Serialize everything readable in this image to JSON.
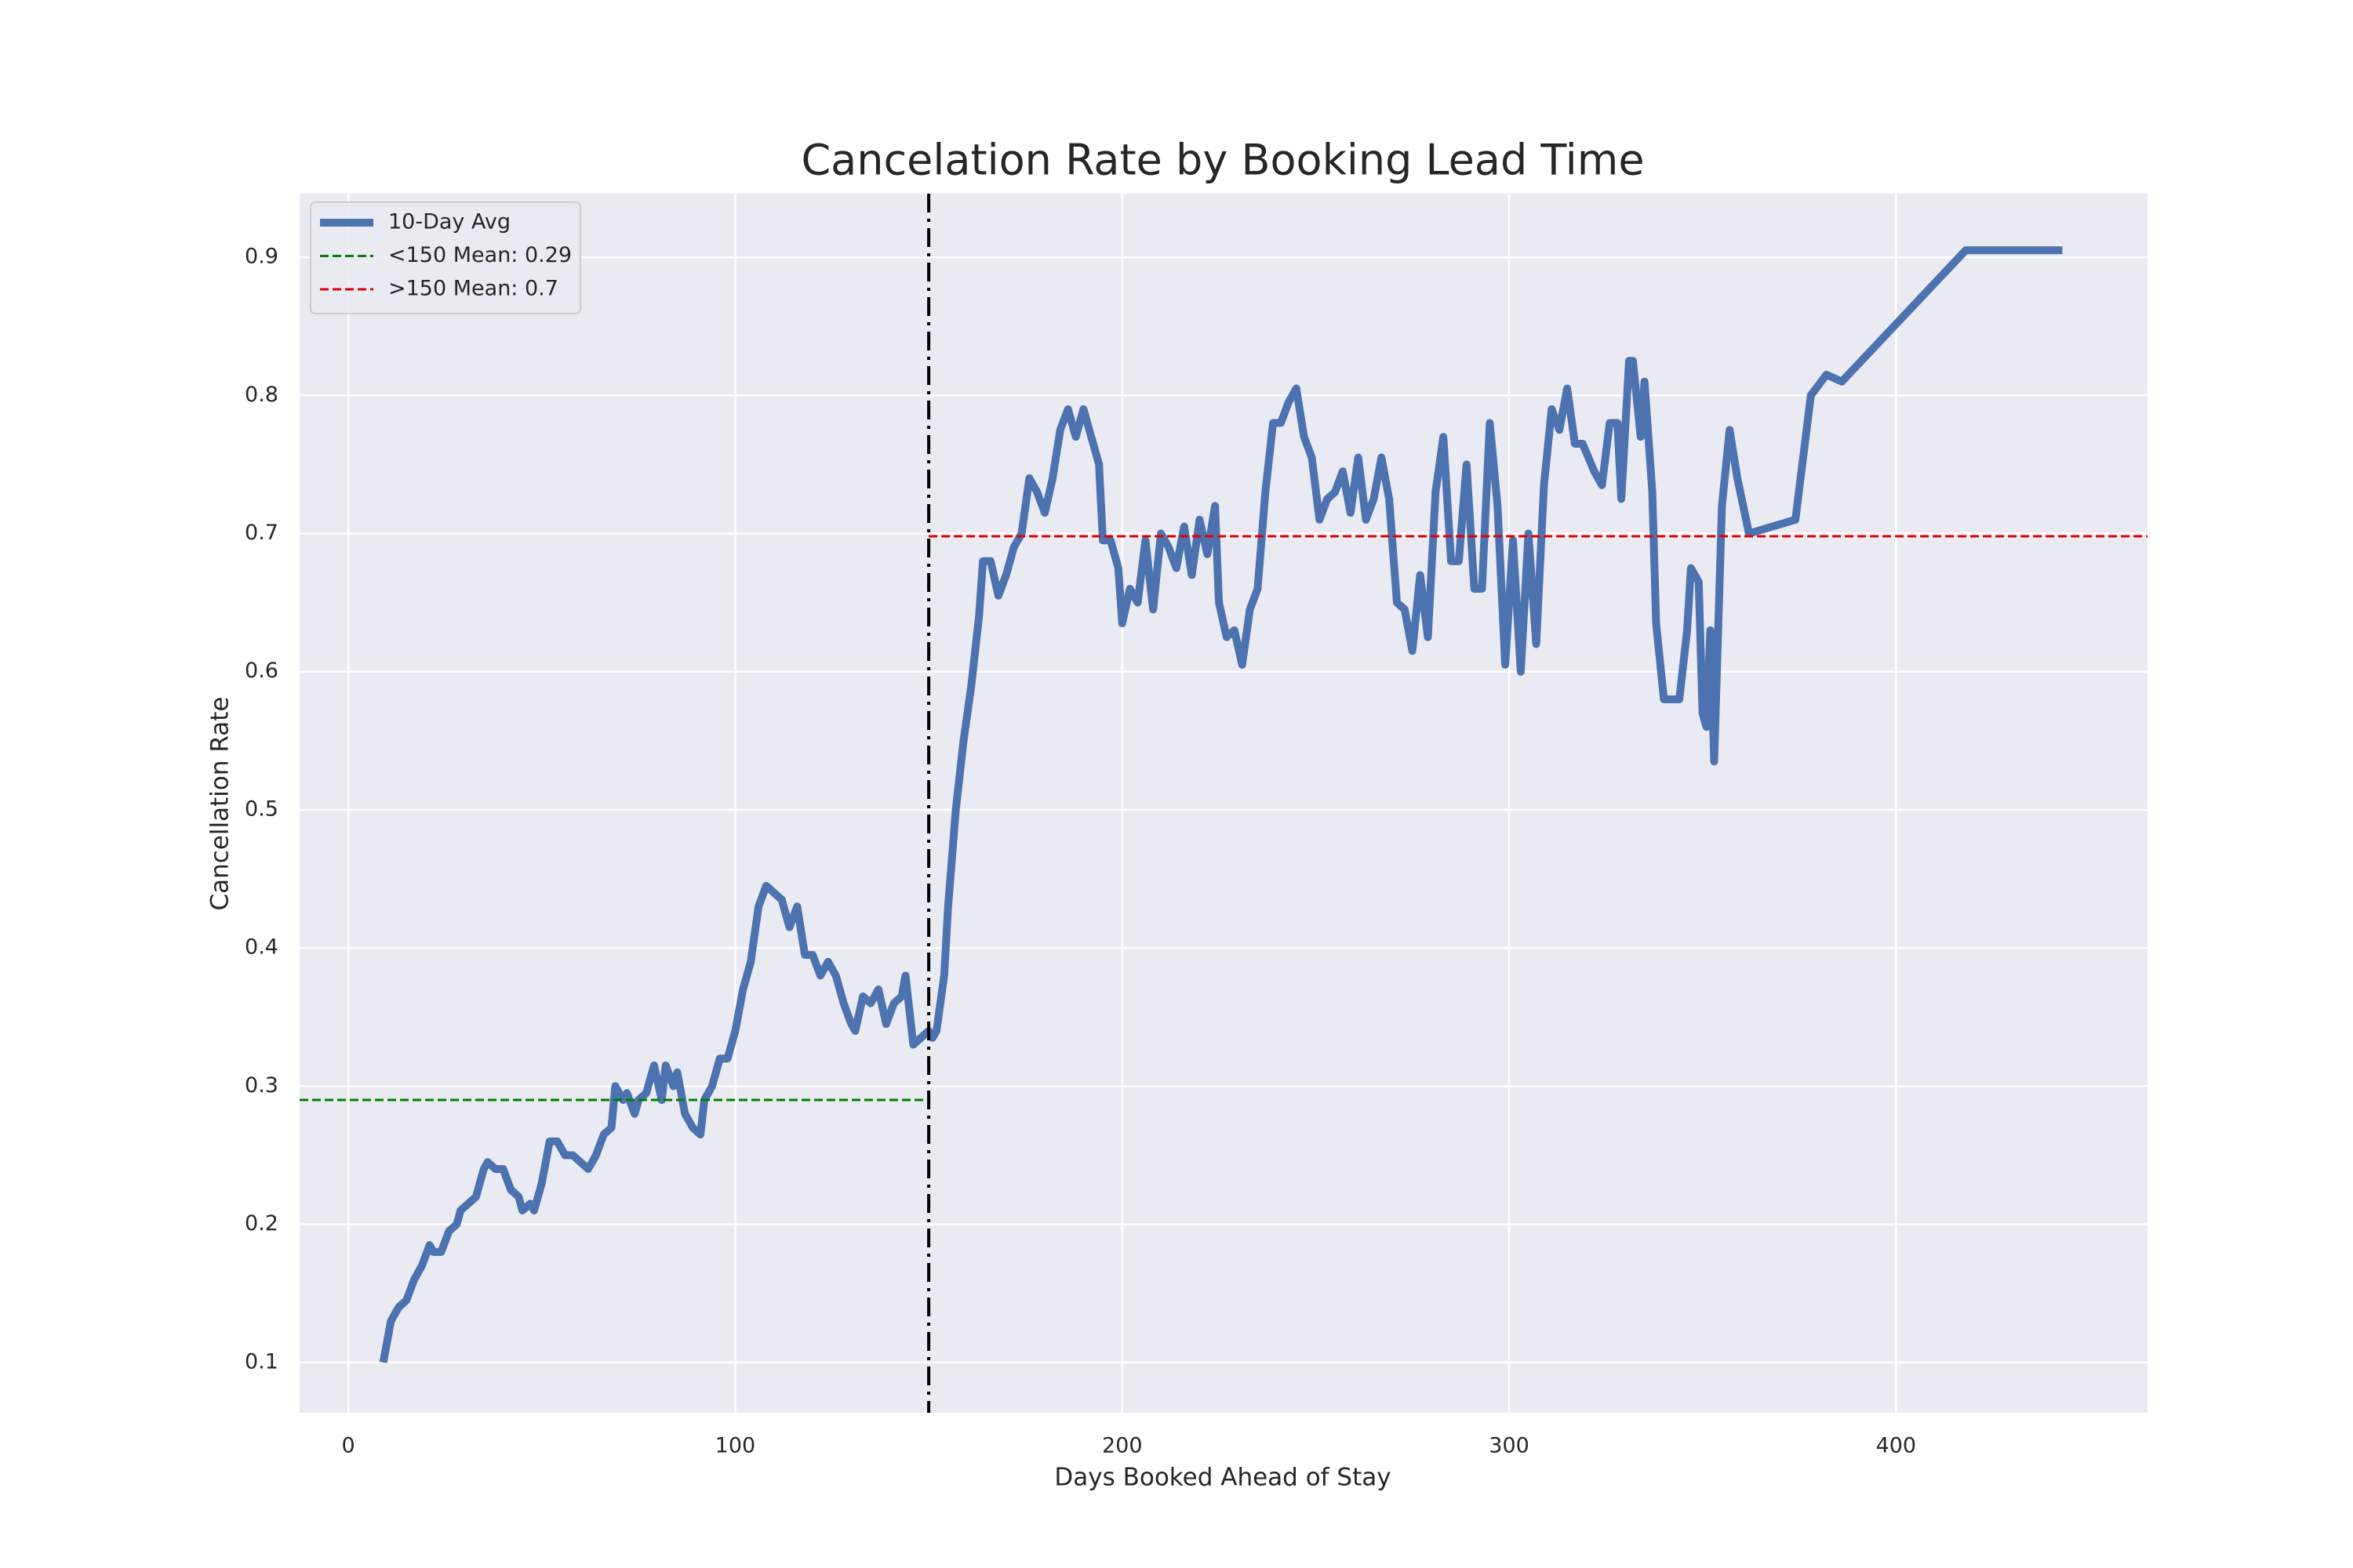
{
  "chart_data": {
    "type": "line",
    "title": "Cancelation Rate by Booking Lead Time",
    "xlabel": "Days Booked Ahead of Stay",
    "ylabel": "Cancellation Rate",
    "x": [
      9,
      11,
      13,
      15,
      17,
      19,
      21,
      22,
      24,
      26,
      28,
      29,
      31,
      33,
      35,
      36,
      38,
      40,
      42,
      44,
      45,
      47,
      48,
      50,
      52,
      54,
      56,
      58,
      60,
      62,
      64,
      66,
      68,
      69,
      71,
      72,
      74,
      75,
      77,
      79,
      81,
      82,
      84,
      85,
      87,
      89,
      91,
      92,
      94,
      96,
      98,
      100,
      102,
      104,
      106,
      108,
      110,
      112,
      114,
      116,
      118,
      120,
      122,
      124,
      126,
      128,
      130,
      131,
      133,
      135,
      137,
      139,
      141,
      143,
      144,
      146,
      148,
      150,
      151,
      152,
      154,
      155,
      157,
      159,
      161,
      163,
      164,
      166,
      168,
      170,
      172,
      174,
      176,
      178,
      180,
      182,
      184,
      186,
      188,
      190,
      192,
      194,
      195,
      197,
      199,
      200,
      202,
      204,
      206,
      208,
      210,
      212,
      214,
      216,
      218,
      220,
      222,
      224,
      225,
      227,
      229,
      231,
      233,
      235,
      237,
      239,
      241,
      243,
      245,
      247,
      249,
      251,
      253,
      255,
      257,
      259,
      261,
      263,
      265,
      267,
      269,
      271,
      273,
      275,
      277,
      279,
      281,
      283,
      285,
      287,
      289,
      291,
      293,
      295,
      297,
      299,
      301,
      303,
      305,
      307,
      309,
      311,
      313,
      315,
      317,
      319,
      322,
      324,
      326,
      328,
      329,
      331,
      332,
      334,
      335,
      337,
      338,
      340,
      342,
      344,
      346,
      347,
      349,
      350,
      351,
      352,
      353,
      355,
      357,
      359,
      362,
      374,
      378,
      382,
      386,
      418,
      443
    ],
    "series": [
      {
        "name": "10-Day Avg",
        "color": "#4c72b0",
        "values": [
          0.1,
          0.13,
          0.14,
          0.145,
          0.16,
          0.17,
          0.185,
          0.18,
          0.18,
          0.195,
          0.2,
          0.21,
          0.215,
          0.22,
          0.24,
          0.245,
          0.24,
          0.24,
          0.225,
          0.22,
          0.21,
          0.215,
          0.21,
          0.23,
          0.26,
          0.26,
          0.25,
          0.25,
          0.245,
          0.24,
          0.25,
          0.265,
          0.27,
          0.3,
          0.29,
          0.295,
          0.28,
          0.29,
          0.295,
          0.315,
          0.29,
          0.315,
          0.3,
          0.31,
          0.28,
          0.27,
          0.265,
          0.29,
          0.3,
          0.32,
          0.32,
          0.34,
          0.37,
          0.39,
          0.43,
          0.445,
          0.44,
          0.435,
          0.415,
          0.43,
          0.395,
          0.395,
          0.38,
          0.39,
          0.38,
          0.36,
          0.345,
          0.34,
          0.365,
          0.36,
          0.37,
          0.345,
          0.36,
          0.365,
          0.38,
          0.33,
          0.335,
          0.34,
          0.335,
          0.34,
          0.38,
          0.43,
          0.5,
          0.55,
          0.59,
          0.64,
          0.68,
          0.68,
          0.655,
          0.67,
          0.69,
          0.7,
          0.74,
          0.73,
          0.715,
          0.74,
          0.775,
          0.79,
          0.77,
          0.79,
          0.77,
          0.75,
          0.695,
          0.695,
          0.675,
          0.635,
          0.66,
          0.65,
          0.695,
          0.645,
          0.7,
          0.69,
          0.675,
          0.705,
          0.67,
          0.71,
          0.685,
          0.72,
          0.65,
          0.625,
          0.63,
          0.605,
          0.645,
          0.66,
          0.73,
          0.78,
          0.78,
          0.795,
          0.805,
          0.77,
          0.755,
          0.71,
          0.725,
          0.73,
          0.745,
          0.715,
          0.755,
          0.71,
          0.725,
          0.755,
          0.725,
          0.65,
          0.645,
          0.615,
          0.67,
          0.625,
          0.73,
          0.77,
          0.68,
          0.68,
          0.75,
          0.66,
          0.66,
          0.78,
          0.72,
          0.605,
          0.695,
          0.6,
          0.7,
          0.62,
          0.735,
          0.79,
          0.775,
          0.805,
          0.765,
          0.765,
          0.745,
          0.735,
          0.78,
          0.78,
          0.725,
          0.825,
          0.825,
          0.77,
          0.81,
          0.73,
          0.635,
          0.58,
          0.58,
          0.58,
          0.63,
          0.675,
          0.665,
          0.57,
          0.56,
          0.63,
          0.535,
          0.72,
          0.775,
          0.74,
          0.7,
          0.71,
          0.8,
          0.815,
          0.81,
          0.905,
          0.905
        ]
      }
    ],
    "reference_lines": [
      {
        "name": "<150 Mean: 0.29",
        "color": "#008000",
        "value": 0.29,
        "side": "below"
      },
      {
        "name": ">150 Mean: 0.7",
        "color": "#e00000",
        "value": 0.698,
        "side": "above"
      }
    ],
    "split": {
      "x": 150,
      "color": "#000000"
    },
    "xlim": [
      -12.6,
      465
    ],
    "ylim": [
      0.0636,
      0.946
    ],
    "xticks": [
      0,
      100,
      200,
      300,
      400
    ],
    "yticks": [
      0.1,
      0.2,
      0.3,
      0.4,
      0.5,
      0.6,
      0.7,
      0.8,
      0.9
    ],
    "grid": true,
    "legend": "upper left"
  }
}
